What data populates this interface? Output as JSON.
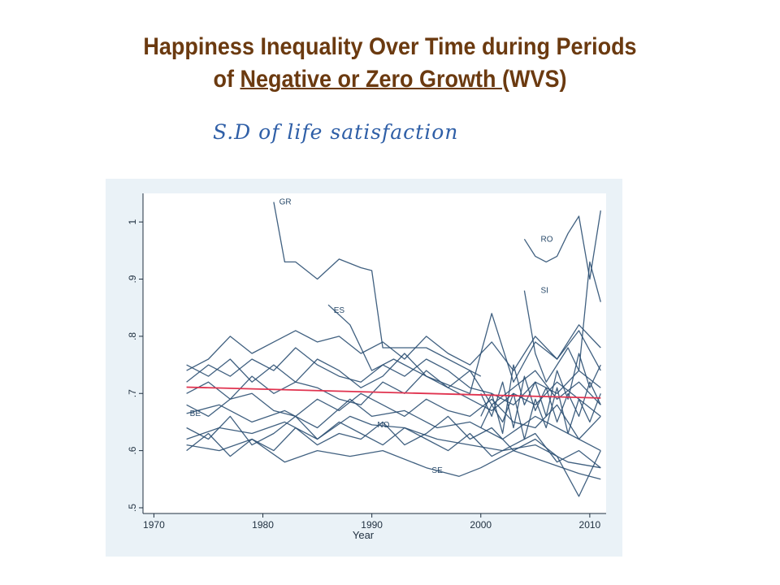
{
  "title": {
    "line1": "Happiness Inequality Over Time during Periods",
    "line2_prefix": "of ",
    "line2_underlined": "Negative or Zero Growth ",
    "line2_suffix": "(WVS)"
  },
  "subtitle": "S.D of life satisfaction",
  "colors": {
    "title": "#6b3a10",
    "subtitle": "#2f5fa7",
    "series": "#2b4f72",
    "trend": "#e0334f",
    "panel": "#eaf2f7"
  },
  "chart_data": {
    "type": "line",
    "xlabel": "Year",
    "ylabel": "",
    "xlim": [
      1969,
      2011.5
    ],
    "ylim": [
      0.49,
      1.05
    ],
    "x_ticks": [
      1970,
      1980,
      1990,
      2000,
      2010
    ],
    "y_ticks": [
      0.5,
      0.6,
      0.7,
      0.8,
      0.9,
      1.0
    ],
    "y_tick_labels": [
      ".5",
      ".6",
      ".7",
      ".8",
      ".9",
      "1"
    ],
    "grid": "none",
    "legend": "none",
    "series": [
      {
        "name": "GR",
        "label_at": [
          1981.5,
          1.035
        ],
        "x": [
          1981,
          1982,
          1983,
          1985,
          1987,
          1989,
          1990,
          1991,
          1995,
          2000
        ],
        "values": [
          1.035,
          0.93,
          0.93,
          0.9,
          0.935,
          0.92,
          0.915,
          0.78,
          0.78,
          0.73
        ]
      },
      {
        "name": "RO",
        "label_at": [
          2005.5,
          0.97
        ],
        "x": [
          2004,
          2005,
          2006,
          2007,
          2008,
          2009,
          2010,
          2011
        ],
        "values": [
          0.97,
          0.94,
          0.93,
          0.94,
          0.98,
          1.01,
          0.9,
          1.02
        ]
      },
      {
        "name": "SI",
        "label_at": [
          2005.5,
          0.88
        ],
        "x": [
          2004,
          2005,
          2006,
          2007,
          2008,
          2009,
          2010,
          2011
        ],
        "values": [
          0.88,
          0.77,
          0.72,
          0.75,
          0.78,
          0.74,
          0.93,
          0.86
        ]
      },
      {
        "name": "ES",
        "label_at": [
          1986.5,
          0.845
        ],
        "x": [
          1986,
          1988,
          1990,
          1992,
          1995,
          1999,
          2001,
          2003,
          2005,
          2007,
          2009,
          2011
        ],
        "values": [
          0.855,
          0.82,
          0.74,
          0.76,
          0.73,
          0.7,
          0.84,
          0.72,
          0.79,
          0.76,
          0.81,
          0.74
        ]
      },
      {
        "name": "BE",
        "label_at": [
          1973.3,
          0.665
        ],
        "x": [
          1973,
          1976,
          1979,
          1982,
          1985,
          1988,
          1990,
          1993,
          1996,
          1999,
          2002,
          2005,
          2008,
          2011
        ],
        "values": [
          0.665,
          0.68,
          0.65,
          0.67,
          0.64,
          0.69,
          0.66,
          0.67,
          0.64,
          0.65,
          0.62,
          0.66,
          0.63,
          0.6
        ]
      },
      {
        "name": "NO",
        "label_at": [
          1990.5,
          0.645
        ],
        "x": [
          1973,
          1976,
          1979,
          1982,
          1985,
          1988,
          1990,
          1993,
          1996,
          1999,
          2002,
          2005,
          2008,
          2011
        ],
        "values": [
          0.62,
          0.64,
          0.63,
          0.65,
          0.62,
          0.66,
          0.645,
          0.64,
          0.62,
          0.61,
          0.6,
          0.61,
          0.58,
          0.57
        ]
      },
      {
        "name": "SE",
        "label_at": [
          1995.5,
          0.565
        ],
        "x": [
          1973,
          1976,
          1979,
          1982,
          1985,
          1988,
          1991,
          1995,
          1998,
          2000,
          2003,
          2006,
          2009,
          2011
        ],
        "values": [
          0.61,
          0.6,
          0.62,
          0.58,
          0.6,
          0.59,
          0.6,
          0.57,
          0.555,
          0.57,
          0.6,
          0.58,
          0.56,
          0.55
        ]
      },
      {
        "name": "",
        "x": [
          1973,
          1975,
          1977,
          1979,
          1981,
          1983,
          1985,
          1987,
          1989,
          1991,
          1993,
          1995,
          1997,
          1999,
          2001,
          2003,
          2005,
          2007,
          2009,
          2011
        ],
        "values": [
          0.74,
          0.76,
          0.8,
          0.77,
          0.79,
          0.81,
          0.79,
          0.8,
          0.77,
          0.79,
          0.76,
          0.8,
          0.77,
          0.75,
          0.79,
          0.74,
          0.8,
          0.76,
          0.82,
          0.78
        ]
      },
      {
        "name": "",
        "x": [
          1973,
          1975,
          1977,
          1979,
          1981,
          1983,
          1985,
          1987,
          1989,
          1991,
          1993,
          1995,
          1997,
          1999,
          2001,
          2003,
          2005,
          2007,
          2009,
          2011
        ],
        "values": [
          0.72,
          0.75,
          0.73,
          0.76,
          0.74,
          0.78,
          0.75,
          0.73,
          0.72,
          0.75,
          0.73,
          0.76,
          0.74,
          0.71,
          0.7,
          0.68,
          0.72,
          0.7,
          0.74,
          0.71
        ]
      },
      {
        "name": "",
        "x": [
          1973,
          1975,
          1977,
          1979,
          1981,
          1983,
          1985,
          1987,
          1989,
          1991,
          1993,
          1995,
          1997,
          1999,
          2001,
          2003,
          2005,
          2007,
          2009,
          2011
        ],
        "values": [
          0.7,
          0.72,
          0.69,
          0.73,
          0.7,
          0.72,
          0.71,
          0.69,
          0.68,
          0.72,
          0.7,
          0.74,
          0.71,
          0.69,
          0.67,
          0.7,
          0.68,
          0.72,
          0.69,
          0.66
        ]
      },
      {
        "name": "",
        "x": [
          1973,
          1975,
          1977,
          1979,
          1981,
          1983,
          1985,
          1987,
          1989,
          1991,
          1993,
          1995,
          1997,
          1999,
          2001,
          2003,
          2005,
          2007,
          2009,
          2011
        ],
        "values": [
          0.75,
          0.73,
          0.76,
          0.72,
          0.75,
          0.72,
          0.76,
          0.74,
          0.71,
          0.73,
          0.77,
          0.73,
          0.71,
          0.74,
          0.68,
          0.71,
          0.74,
          0.69,
          0.72,
          0.68
        ]
      },
      {
        "name": "",
        "x": [
          1973,
          1975,
          1977,
          1979,
          1981,
          1983,
          1985,
          1987,
          1989,
          1991,
          1993,
          1995,
          1997,
          1999,
          2001,
          2003,
          2005,
          2007,
          2009,
          2011
        ],
        "values": [
          0.68,
          0.66,
          0.69,
          0.7,
          0.67,
          0.66,
          0.69,
          0.67,
          0.7,
          0.68,
          0.66,
          0.69,
          0.67,
          0.66,
          0.69,
          0.65,
          0.64,
          0.68,
          0.62,
          0.66
        ]
      },
      {
        "name": "",
        "x": [
          1973,
          1975,
          1977,
          1979,
          1981,
          1983,
          1985,
          1987,
          1989,
          1991,
          1993,
          1995,
          1997,
          1999,
          2001,
          2003,
          2005,
          2007,
          2009,
          2011
        ],
        "values": [
          0.64,
          0.62,
          0.66,
          0.61,
          0.63,
          0.66,
          0.62,
          0.65,
          0.63,
          0.61,
          0.64,
          0.62,
          0.6,
          0.63,
          0.59,
          0.61,
          0.63,
          0.58,
          0.6,
          0.57
        ]
      },
      {
        "name": "",
        "x": [
          1973,
          1975,
          1977,
          1979,
          1981,
          1983,
          1985,
          1987,
          1989,
          1991,
          1993,
          1995,
          1997,
          1999,
          2001,
          2003,
          2005,
          2007,
          2009,
          2011
        ],
        "values": [
          0.6,
          0.63,
          0.59,
          0.62,
          0.6,
          0.64,
          0.61,
          0.63,
          0.62,
          0.65,
          0.61,
          0.63,
          0.66,
          0.62,
          0.64,
          0.6,
          0.62,
          0.59,
          0.52,
          0.6
        ]
      },
      {
        "name": "",
        "x": [
          2000,
          2001,
          2002,
          2003,
          2004,
          2005,
          2006,
          2007,
          2008,
          2009,
          2010,
          2011
        ],
        "values": [
          0.66,
          0.7,
          0.63,
          0.75,
          0.68,
          0.72,
          0.66,
          0.74,
          0.69,
          0.77,
          0.71,
          0.75
        ]
      },
      {
        "name": "",
        "x": [
          2000,
          2001,
          2002,
          2003,
          2004,
          2005,
          2006,
          2007,
          2008,
          2009,
          2010,
          2011
        ],
        "values": [
          0.7,
          0.66,
          0.72,
          0.64,
          0.73,
          0.67,
          0.71,
          0.65,
          0.7,
          0.66,
          0.72,
          0.68
        ]
      },
      {
        "name": "",
        "x": [
          2000,
          2001,
          2002,
          2003,
          2004,
          2005,
          2006,
          2007,
          2008,
          2009,
          2010,
          2011
        ],
        "values": [
          0.64,
          0.68,
          0.65,
          0.7,
          0.62,
          0.69,
          0.64,
          0.71,
          0.63,
          0.69,
          0.65,
          0.7
        ]
      }
    ],
    "trend": {
      "name": "",
      "x": [
        1973,
        2011
      ],
      "values": [
        0.711,
        0.692
      ]
    }
  }
}
